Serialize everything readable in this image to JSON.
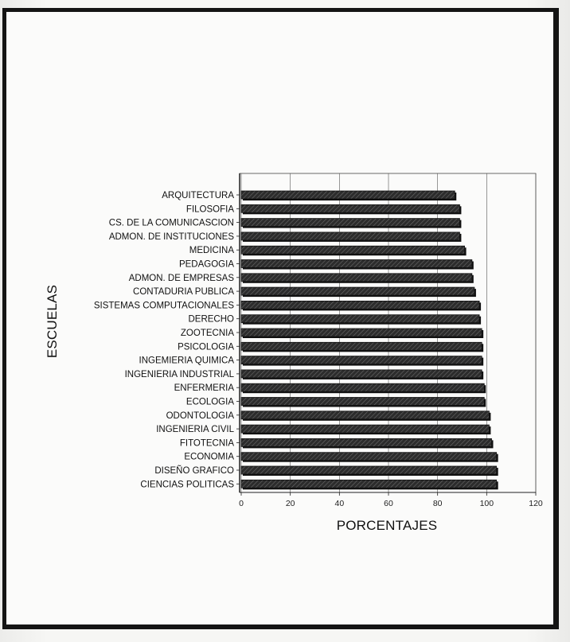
{
  "chart_data": {
    "type": "bar",
    "orientation": "horizontal",
    "title": "",
    "xlabel": "PORCENTAJES",
    "ylabel": "ESCUELAS",
    "xlim": [
      0,
      120
    ],
    "xticks": [
      0,
      20,
      40,
      60,
      80,
      100,
      120
    ],
    "grid": "vertical",
    "legend": "none",
    "bar_color": "#3a3a3a",
    "categories": [
      "ARQUITECTURA",
      "FILOSOFIA",
      "CS. DE LA COMUNICASCION",
      "ADMON. DE INSTITUCIONES",
      "MEDICINA",
      "PEDAGOGIA",
      "ADMON. DE EMPRESAS",
      "CONTADURIA PUBLICA",
      "SISTEMAS COMPUTACIONALES",
      "DERECHO",
      "ZOOTECNIA",
      "PSICOLOGIA",
      "INGEMIERIA QUIMICA",
      "INGENIERIA INDUSTRIAL",
      "ENFERMERIA",
      "ECOLOGIA",
      "ODONTOLOGIA",
      "INGENIERIA CIVIL",
      "FITOTECNIA",
      "ECONOMIA",
      "DISEÑO GRAFICO",
      "CIENCIAS POLITICAS"
    ],
    "values": [
      87,
      89,
      89,
      89,
      91,
      94,
      94,
      95,
      97,
      97,
      98,
      98,
      98,
      98,
      99,
      99,
      101,
      101,
      102,
      104,
      104,
      104
    ]
  }
}
